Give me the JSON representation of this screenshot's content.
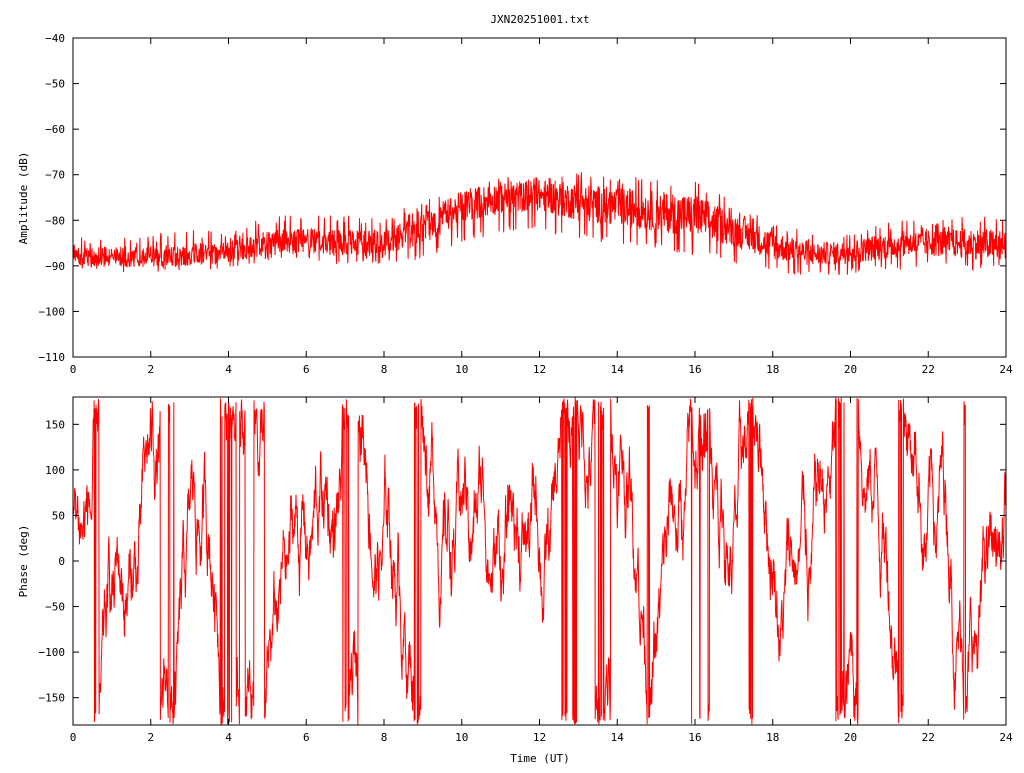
{
  "title": "JXN20251001.txt",
  "chart_data": [
    {
      "type": "line",
      "title": "JXN20251001.txt",
      "xlabel": "",
      "ylabel": "Amplitude (dB)",
      "xlim": [
        0,
        24
      ],
      "ylim": [
        -110,
        -40
      ],
      "xticks": [
        "0",
        "2",
        "4",
        "6",
        "8",
        "10",
        "12",
        "14",
        "16",
        "18",
        "20",
        "22",
        "24"
      ],
      "yticks": [
        "-40",
        "-50",
        "-60",
        "-70",
        "-80",
        "-90",
        "-100",
        "-110"
      ],
      "grid": false,
      "series": [
        {
          "color": "#ff0000",
          "x": [
            0,
            1,
            2,
            3,
            4,
            5,
            6,
            7,
            8,
            9,
            10,
            11,
            12,
            13,
            14,
            15,
            16,
            17,
            18,
            19,
            20,
            21,
            22,
            23,
            24
          ],
          "mean": [
            -88,
            -88,
            -88,
            -87.5,
            -87,
            -85,
            -84.5,
            -85,
            -85,
            -82,
            -77,
            -75,
            -74.5,
            -76,
            -77,
            -78,
            -79,
            -82,
            -85.5,
            -87.5,
            -87,
            -85.5,
            -85,
            -85,
            -85.5
          ],
          "low": [
            -91,
            -91.5,
            -91.5,
            -91,
            -90.5,
            -89,
            -88.5,
            -90,
            -89.5,
            -88.5,
            -85,
            -83,
            -82.5,
            -84,
            -85.5,
            -86.5,
            -88,
            -89.5,
            -91.5,
            -92.5,
            -92,
            -91,
            -90.5,
            -91,
            -91
          ],
          "high": [
            -84,
            -83,
            -83,
            -82,
            -82.5,
            -79,
            -78.5,
            -79,
            -78.5,
            -76,
            -72,
            -70,
            -70,
            -69,
            -70,
            -70.5,
            -71,
            -76,
            -80,
            -83,
            -83,
            -80,
            -80,
            -79,
            -78
          ]
        }
      ]
    },
    {
      "type": "line",
      "title": "",
      "xlabel": "Time (UT)",
      "ylabel": "Phase (deg)",
      "xlim": [
        0,
        24
      ],
      "ylim": [
        -180,
        180
      ],
      "xticks": [
        "0",
        "2",
        "4",
        "6",
        "8",
        "10",
        "12",
        "14",
        "16",
        "18",
        "20",
        "22",
        "24"
      ],
      "yticks": [
        "150",
        "100",
        "50",
        "0",
        "-50",
        "-100",
        "-150"
      ],
      "grid": false,
      "series": [
        {
          "color": "#ff0000",
          "values_range": [
            -180,
            180
          ],
          "wraps_at": 180
        }
      ]
    }
  ]
}
